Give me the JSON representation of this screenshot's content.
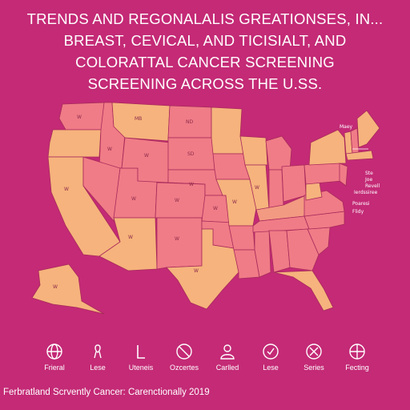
{
  "title": {
    "line1": "TRENDS AND REGONALALIS GREATIONSES, IN...",
    "line2": "BREAST, CEVICAL, AND TICISIALT, AND",
    "line3": "COLORATTAL CANCER SCREENING",
    "line4": "SCREENING ACROSS THE U.SS."
  },
  "map": {
    "colors": {
      "background": "#c42a76",
      "pink": "#f07c87",
      "tan": "#f6b37d",
      "salmon": "#f39a82"
    },
    "labels": {
      "wa": "W",
      "mt": "MB",
      "nd": "ND",
      "sd": "SD",
      "id": "W",
      "wy": "W",
      "ne": "W",
      "ca": "W",
      "ut": "W",
      "co": "W",
      "nm": "W",
      "az": "W",
      "tx": "W",
      "ak": "W",
      "ks": "W",
      "mo": "W",
      "il": "W",
      "maine": "Maey",
      "ne1": "Ste",
      "ne2": "Joe",
      "ne3": "Revell",
      "ne4": "Ierdssiree",
      "ne5": "Poaresi",
      "ne6": "Flidy"
    }
  },
  "icons": [
    {
      "icon": "globe-icon",
      "label": "Frieral"
    },
    {
      "icon": "ribbon-icon",
      "label": "Lese"
    },
    {
      "icon": "bracket-icon",
      "label": "Uteneis"
    },
    {
      "icon": "prohibited-icon",
      "label": "Ozcertes"
    },
    {
      "icon": "person-icon",
      "label": "Carlled"
    },
    {
      "icon": "check-circle-icon",
      "label": "Lese"
    },
    {
      "icon": "tools-icon",
      "label": "Series"
    },
    {
      "icon": "crosshair-icon",
      "label": "Fecting"
    }
  ],
  "footer": "Ferbratland Scrvently Cancer: Carenctionally 2019"
}
